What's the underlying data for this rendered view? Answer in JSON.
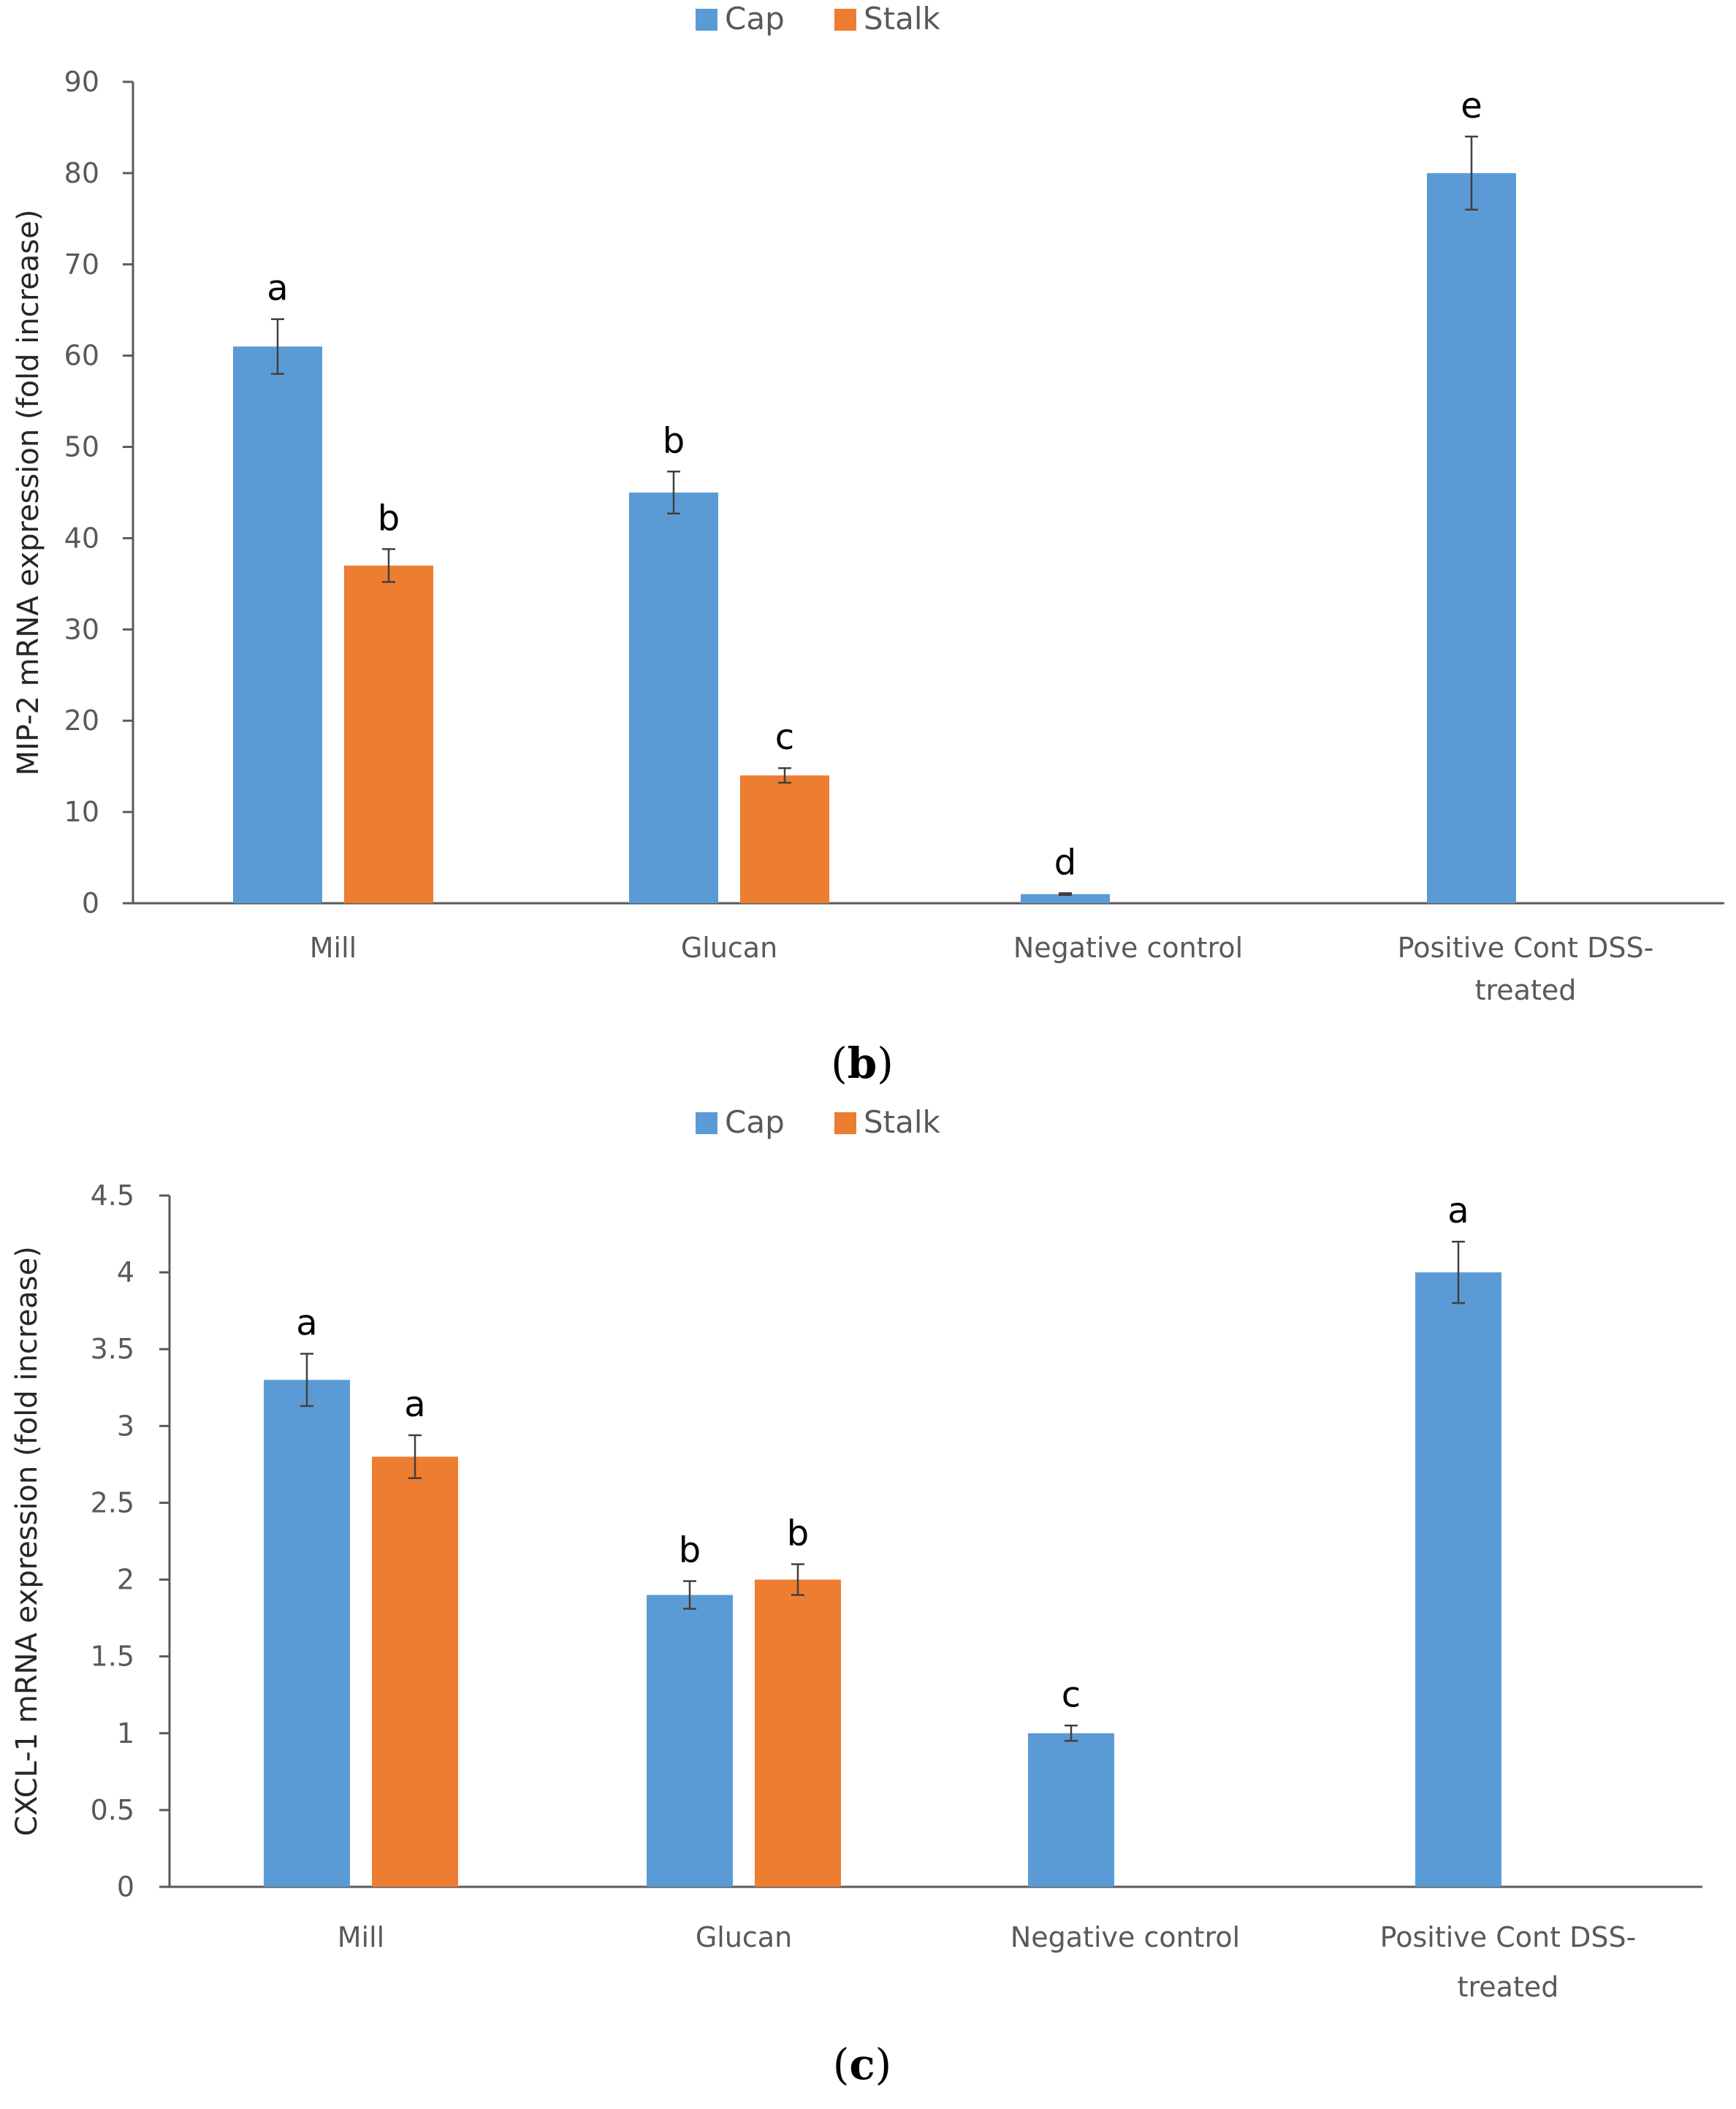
{
  "colors": {
    "cap": "#5b9bd5",
    "stalk": "#ed7d31",
    "axis": "#595959",
    "error": "#404040"
  },
  "chart_data": [
    {
      "type": "bar",
      "caption": {
        "open": "(",
        "letter": "b",
        "close": ")"
      },
      "ylabel": "MIP-2 mRNA expression (fold increase)",
      "xlabel": "",
      "ylim": [
        0,
        90
      ],
      "yticks": [
        "0",
        "10",
        "20",
        "30",
        "40",
        "50",
        "60",
        "70",
        "80",
        "90"
      ],
      "categories": [
        "Mill",
        "Glucan",
        "Negative control",
        "Positive Cont DSS-|treated"
      ],
      "legend": {
        "position": "top-center",
        "entries": [
          "Cap",
          "Stalk"
        ]
      },
      "series": [
        {
          "name": "Cap",
          "values": [
            61,
            45,
            1,
            80
          ],
          "errors": [
            3,
            2.3,
            0.1,
            4
          ],
          "labels": [
            "a",
            "b",
            "d",
            "e"
          ]
        },
        {
          "name": "Stalk",
          "values": [
            37,
            14,
            null,
            null
          ],
          "errors": [
            1.8,
            0.8,
            null,
            null
          ],
          "labels": [
            "b",
            "c",
            "",
            ""
          ]
        }
      ]
    },
    {
      "type": "bar",
      "caption": {
        "open": "(",
        "letter": "c",
        "close": ")"
      },
      "ylabel": "CXCL-1 mRNA expression (fold increase)",
      "xlabel": "",
      "ylim": [
        0,
        4.5
      ],
      "yticks": [
        "0",
        "0.5",
        "1",
        "1.5",
        "2",
        "2.5",
        "3",
        "3.5",
        "4",
        "4.5"
      ],
      "categories": [
        "Mill",
        "Glucan",
        "Negative control",
        "Positive Cont DSS-|treated"
      ],
      "legend": {
        "position": "top-center",
        "entries": [
          "Cap",
          "Stalk"
        ]
      },
      "series": [
        {
          "name": "Cap",
          "values": [
            3.3,
            1.9,
            1.0,
            4.0
          ],
          "errors": [
            0.17,
            0.09,
            0.05,
            0.2
          ],
          "labels": [
            "a",
            "b",
            "c",
            "a"
          ]
        },
        {
          "name": "Stalk",
          "values": [
            2.8,
            2.0,
            null,
            null
          ],
          "errors": [
            0.14,
            0.1,
            null,
            null
          ],
          "labels": [
            "a",
            "b",
            "",
            ""
          ]
        }
      ]
    }
  ]
}
